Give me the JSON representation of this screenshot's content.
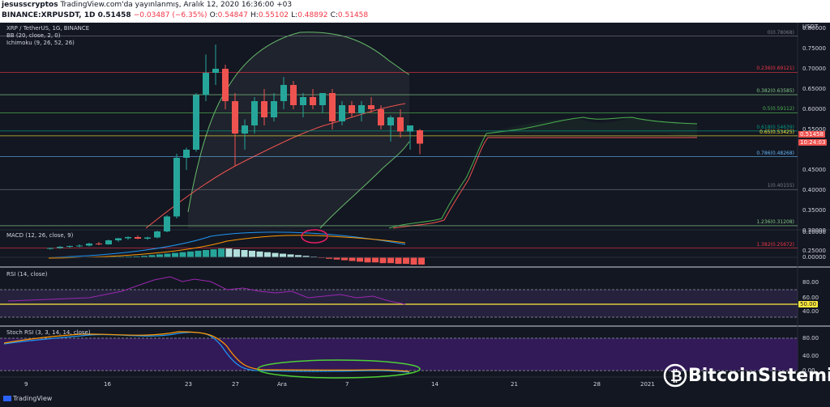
{
  "header": {
    "author": "jesusscryptos",
    "published": "TradingView.com'da yayınlanmış, Aralık 12, 2020 16:36:00 +03",
    "symbol": "BINANCE:XRPUSDT, 1D",
    "last": "0.51458",
    "change": "−0.03487 (−6.35%)",
    "o_label": "O:",
    "o": "0.54847",
    "h_label": "H:",
    "h": "0.55102",
    "l_label": "L:",
    "l": "0.48892",
    "c_label": "C:",
    "c": "0.51458"
  },
  "main_pane": {
    "title": "XRP / TetherUS, 1G, BINANCE",
    "indicator1": "BB (20, close, 2, 0)",
    "indicator2": "Ichimoku (9, 26, 52, 26)",
    "currency": "USDT",
    "yticks": [
      "0.80000",
      "0.75000",
      "0.70000",
      "0.65000",
      "0.60000",
      "0.55000",
      "0.45000",
      "0.40000",
      "0.35000",
      "0.30000",
      "0.25000"
    ],
    "last_price_tag": "0.51458",
    "countdown_tag": "10:24:03",
    "fib_levels": [
      {
        "label": "0(0.78068)",
        "color": "#787b86"
      },
      {
        "label": "0.236(0.69121)",
        "color": "#f23645"
      },
      {
        "label": "0.382(0.63585)",
        "color": "#81c784"
      },
      {
        "label": "0.5(0.59112)",
        "color": "#4caf50"
      },
      {
        "label": "0.618(0.54639)",
        "color": "#089981"
      },
      {
        "label": "0.65(0.53425)",
        "color": "#ffeb3b"
      },
      {
        "label": "0.786(0.48268)",
        "color": "#64b5f6"
      },
      {
        "label": "1(0.40155)",
        "color": "#787b86"
      },
      {
        "label": "1.236(0.31208)",
        "color": "#81c784"
      },
      {
        "label": "1.382(0.25672)",
        "color": "#f23645"
      }
    ]
  },
  "macd_pane": {
    "title": "MACD (12, 26, close, 9)",
    "yticks": [
      "0.10000",
      "0.00000"
    ]
  },
  "rsi_pane": {
    "title": "RSI (14, close)",
    "yticks": [
      "80.00",
      "60.00",
      "50.00",
      "40.00"
    ]
  },
  "stoch_pane": {
    "title": "Stoch RSI (3, 3, 14, 14, close)",
    "yticks": [
      "80.00",
      "40.00",
      "0.00"
    ]
  },
  "xaxis": [
    "9",
    "16",
    "23",
    "27",
    "Ara",
    "7",
    "14",
    "21",
    "28",
    "2021"
  ],
  "footer": {
    "brand": "TradingView"
  },
  "watermark": {
    "text": "BitcoinSistemi"
  },
  "colors": {
    "up": "#26a69a",
    "down": "#ef5350",
    "background": "#131722",
    "stoch_fill": "#3d1b6b"
  }
}
